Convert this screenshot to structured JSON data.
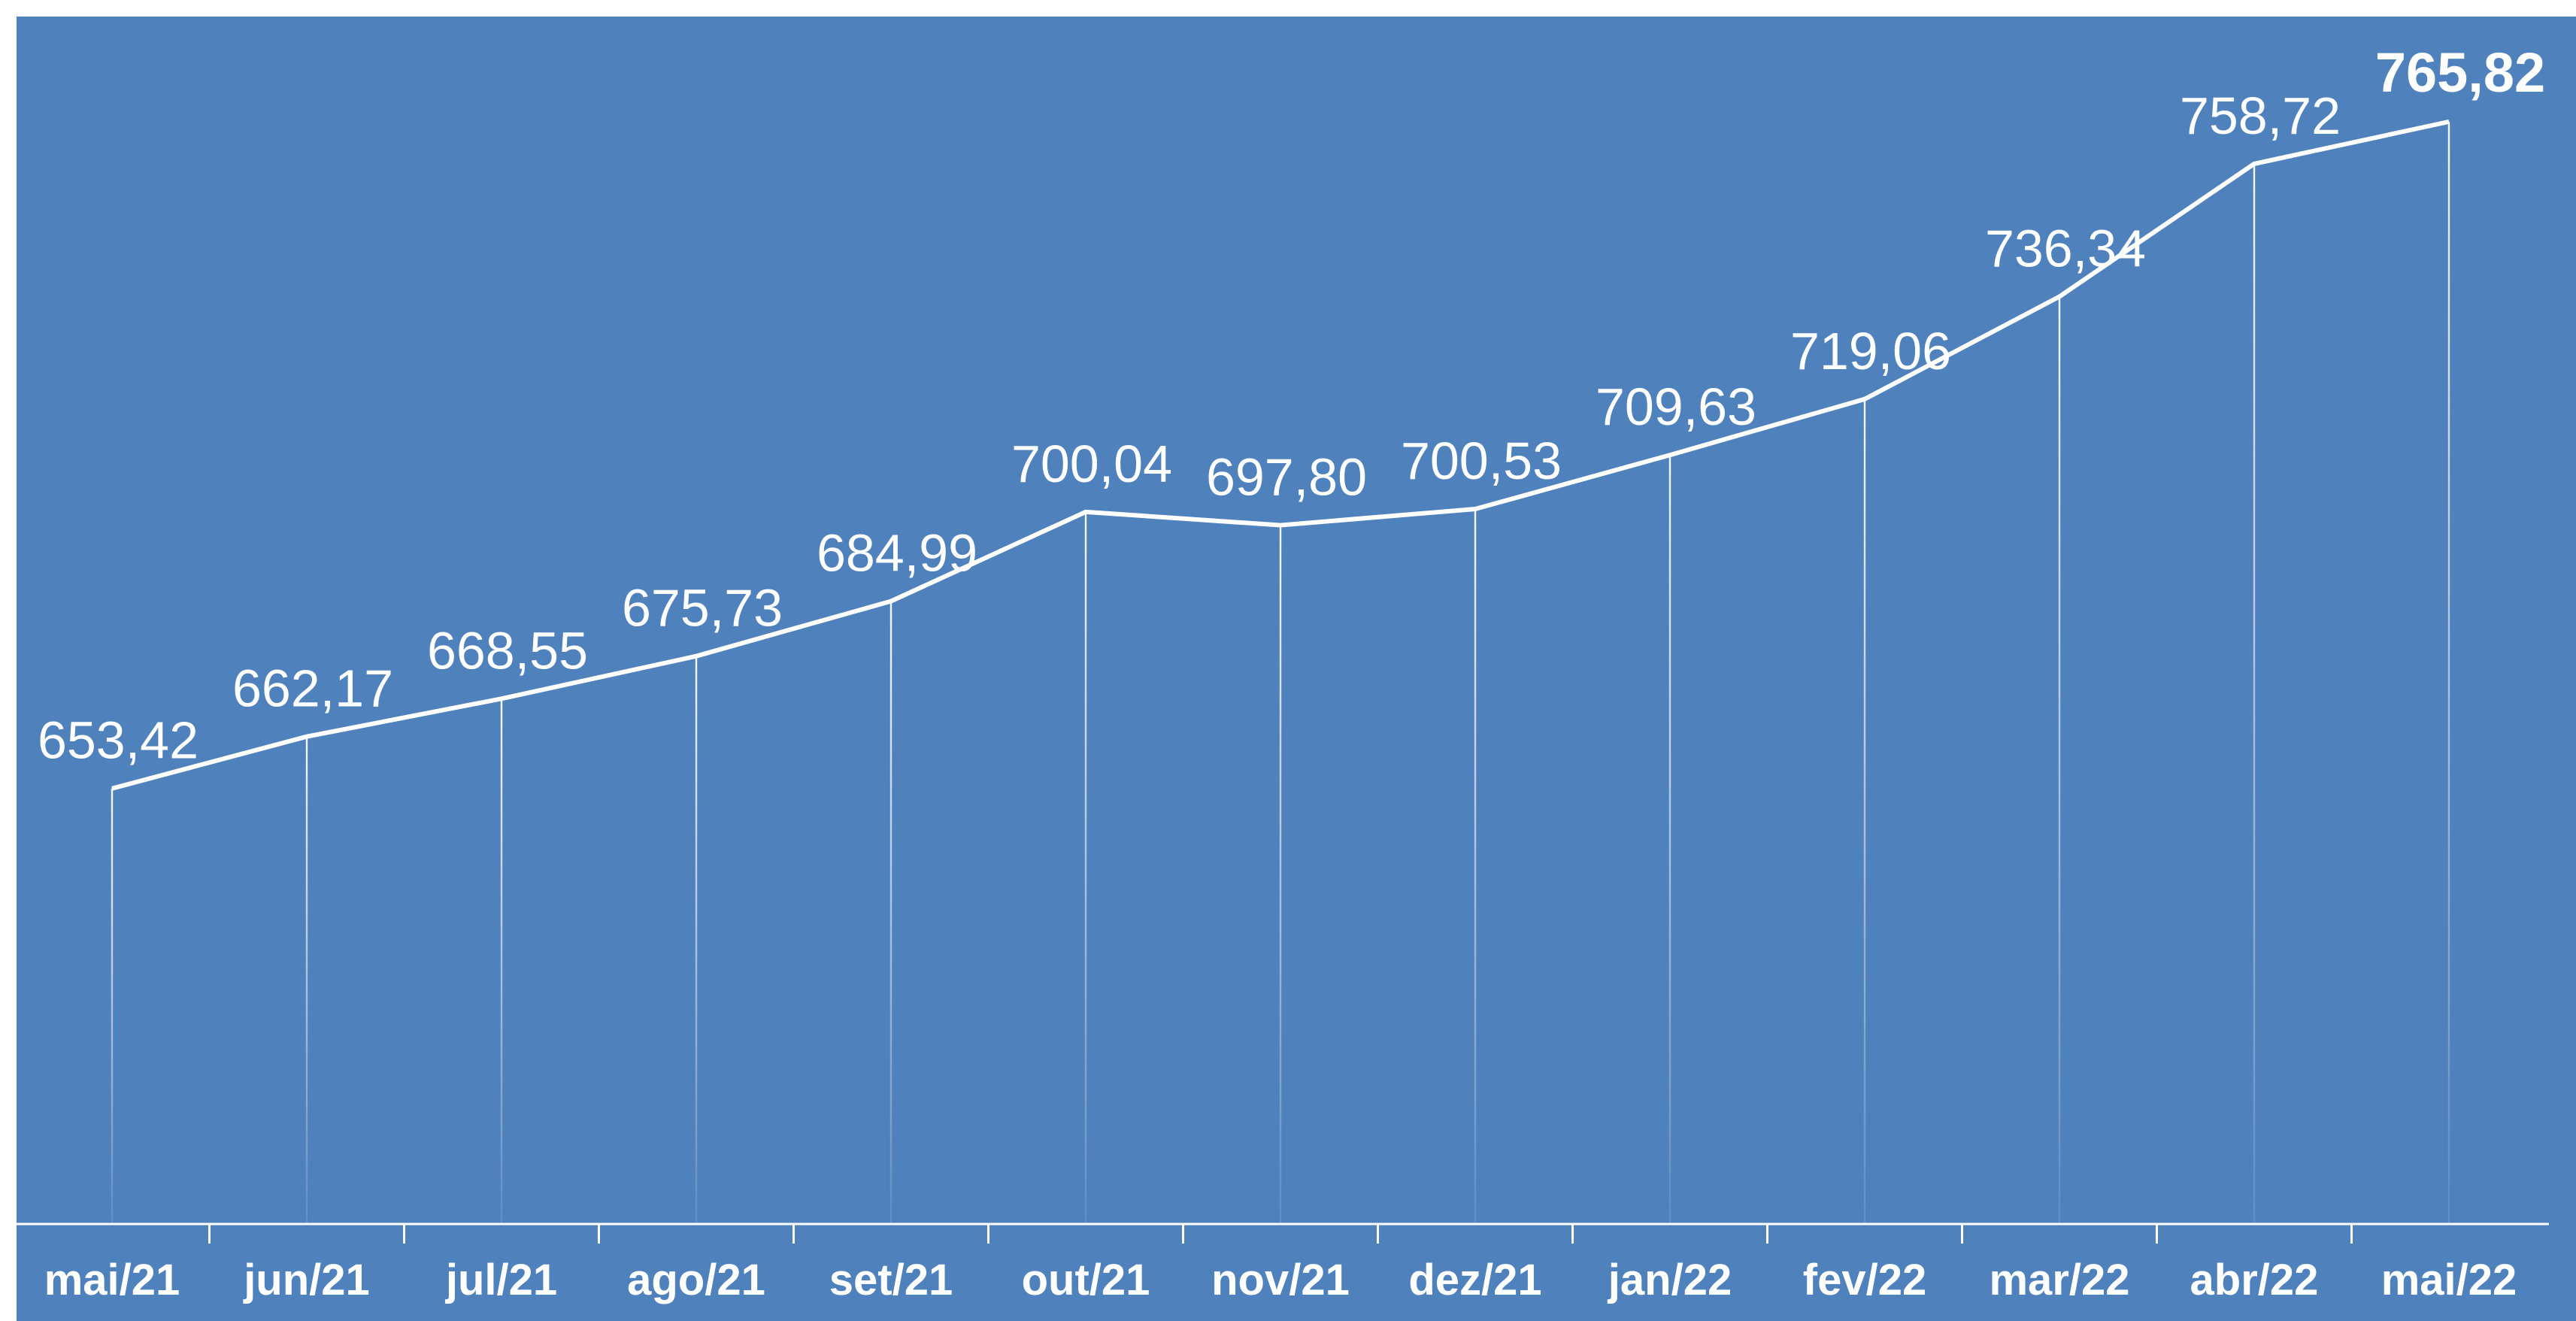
{
  "chart_data": {
    "type": "line",
    "categories": [
      "mai/21",
      "jun/21",
      "jul/21",
      "ago/21",
      "set/21",
      "out/21",
      "nov/21",
      "dez/21",
      "jan/22",
      "fev/22",
      "mar/22",
      "abr/22",
      "mai/22"
    ],
    "values": [
      653.42,
      662.17,
      668.55,
      675.73,
      684.99,
      700.04,
      697.8,
      700.53,
      709.63,
      719.06,
      736.34,
      758.72,
      765.82
    ],
    "value_labels": [
      "653,42",
      "662,17",
      "668,55",
      "675,73",
      "684,99",
      "700,04",
      "697,80",
      "700,53",
      "709,63",
      "719,06",
      "736,34",
      "758,72",
      "765,82"
    ],
    "color": "#ffffff",
    "background": "#4f81bd",
    "ylim": [
      580,
      780
    ],
    "bold_last_label": true
  }
}
